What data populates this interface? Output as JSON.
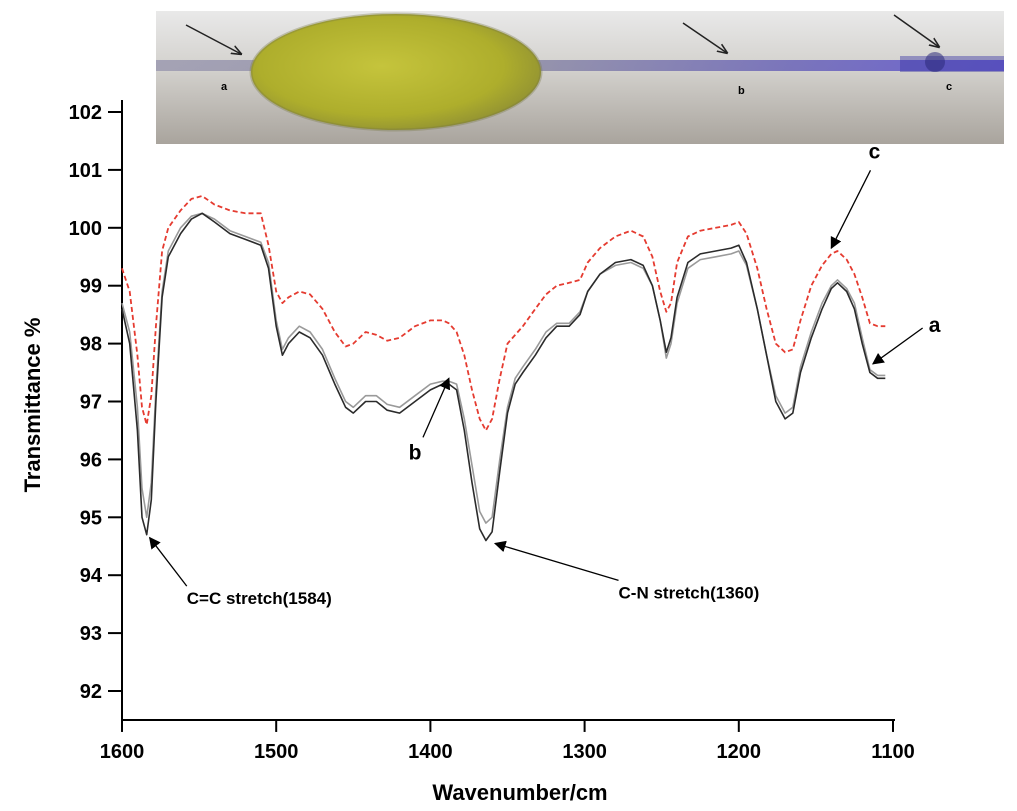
{
  "chart_data": {
    "type": "line",
    "xlabel": "Wavenumber/cm",
    "ylabel": "Transmittance %",
    "xlim": [
      1600,
      1100
    ],
    "ylim": [
      91.5,
      102.4
    ],
    "x_ticks": [
      1600,
      1500,
      1400,
      1300,
      1200,
      1100
    ],
    "y_ticks": [
      92,
      93,
      94,
      95,
      96,
      97,
      98,
      99,
      100,
      101,
      102
    ],
    "grid": false,
    "inset_photo_labels": [
      "a",
      "b",
      "c"
    ],
    "series": [
      {
        "name": "a",
        "color": "#2b2b2b",
        "style": "solid",
        "points": [
          [
            1600,
            98.6
          ],
          [
            1595,
            98.0
          ],
          [
            1590,
            96.5
          ],
          [
            1587,
            95.0
          ],
          [
            1584,
            94.7
          ],
          [
            1581,
            95.3
          ],
          [
            1578,
            97.0
          ],
          [
            1574,
            98.8
          ],
          [
            1570,
            99.5
          ],
          [
            1562,
            99.9
          ],
          [
            1555,
            100.15
          ],
          [
            1548,
            100.25
          ],
          [
            1540,
            100.1
          ],
          [
            1530,
            99.9
          ],
          [
            1520,
            99.8
          ],
          [
            1510,
            99.7
          ],
          [
            1505,
            99.3
          ],
          [
            1500,
            98.3
          ],
          [
            1496,
            97.8
          ],
          [
            1492,
            98.0
          ],
          [
            1485,
            98.2
          ],
          [
            1478,
            98.1
          ],
          [
            1470,
            97.8
          ],
          [
            1462,
            97.3
          ],
          [
            1455,
            96.9
          ],
          [
            1450,
            96.8
          ],
          [
            1442,
            97.0
          ],
          [
            1435,
            97.0
          ],
          [
            1428,
            96.85
          ],
          [
            1420,
            96.8
          ],
          [
            1410,
            97.0
          ],
          [
            1400,
            97.2
          ],
          [
            1392,
            97.3
          ],
          [
            1388,
            97.3
          ],
          [
            1383,
            97.2
          ],
          [
            1378,
            96.5
          ],
          [
            1373,
            95.6
          ],
          [
            1368,
            94.8
          ],
          [
            1364,
            94.6
          ],
          [
            1360,
            94.75
          ],
          [
            1355,
            95.8
          ],
          [
            1350,
            96.8
          ],
          [
            1345,
            97.3
          ],
          [
            1340,
            97.5
          ],
          [
            1332,
            97.8
          ],
          [
            1325,
            98.1
          ],
          [
            1318,
            98.3
          ],
          [
            1310,
            98.3
          ],
          [
            1303,
            98.5
          ],
          [
            1298,
            98.9
          ],
          [
            1290,
            99.2
          ],
          [
            1280,
            99.4
          ],
          [
            1270,
            99.45
          ],
          [
            1262,
            99.35
          ],
          [
            1256,
            99.0
          ],
          [
            1251,
            98.4
          ],
          [
            1247,
            97.85
          ],
          [
            1244,
            98.1
          ],
          [
            1240,
            98.8
          ],
          [
            1233,
            99.4
          ],
          [
            1225,
            99.55
          ],
          [
            1215,
            99.6
          ],
          [
            1205,
            99.65
          ],
          [
            1200,
            99.7
          ],
          [
            1195,
            99.4
          ],
          [
            1188,
            98.6
          ],
          [
            1182,
            97.8
          ],
          [
            1176,
            97.0
          ],
          [
            1170,
            96.7
          ],
          [
            1165,
            96.8
          ],
          [
            1160,
            97.5
          ],
          [
            1153,
            98.1
          ],
          [
            1146,
            98.6
          ],
          [
            1140,
            98.95
          ],
          [
            1136,
            99.05
          ],
          [
            1130,
            98.9
          ],
          [
            1125,
            98.6
          ],
          [
            1120,
            98.0
          ],
          [
            1115,
            97.5
          ],
          [
            1110,
            97.4
          ],
          [
            1105,
            97.4
          ]
        ]
      },
      {
        "name": "b",
        "color": "#9a9a9a",
        "style": "solid",
        "points": [
          [
            1600,
            98.7
          ],
          [
            1595,
            98.2
          ],
          [
            1590,
            96.9
          ],
          [
            1587,
            95.5
          ],
          [
            1584,
            95.0
          ],
          [
            1581,
            95.6
          ],
          [
            1578,
            97.2
          ],
          [
            1574,
            98.9
          ],
          [
            1570,
            99.6
          ],
          [
            1562,
            100.0
          ],
          [
            1555,
            100.2
          ],
          [
            1548,
            100.25
          ],
          [
            1540,
            100.15
          ],
          [
            1530,
            99.95
          ],
          [
            1520,
            99.85
          ],
          [
            1510,
            99.75
          ],
          [
            1505,
            99.4
          ],
          [
            1500,
            98.4
          ],
          [
            1496,
            97.9
          ],
          [
            1492,
            98.1
          ],
          [
            1485,
            98.3
          ],
          [
            1478,
            98.2
          ],
          [
            1470,
            97.9
          ],
          [
            1462,
            97.4
          ],
          [
            1455,
            97.0
          ],
          [
            1450,
            96.9
          ],
          [
            1442,
            97.1
          ],
          [
            1435,
            97.1
          ],
          [
            1428,
            96.95
          ],
          [
            1420,
            96.9
          ],
          [
            1410,
            97.1
          ],
          [
            1400,
            97.3
          ],
          [
            1392,
            97.35
          ],
          [
            1388,
            97.35
          ],
          [
            1383,
            97.3
          ],
          [
            1378,
            96.7
          ],
          [
            1373,
            95.9
          ],
          [
            1368,
            95.1
          ],
          [
            1364,
            94.9
          ],
          [
            1360,
            95.0
          ],
          [
            1355,
            96.0
          ],
          [
            1350,
            96.9
          ],
          [
            1345,
            97.4
          ],
          [
            1340,
            97.6
          ],
          [
            1332,
            97.9
          ],
          [
            1325,
            98.2
          ],
          [
            1318,
            98.35
          ],
          [
            1310,
            98.35
          ],
          [
            1303,
            98.55
          ],
          [
            1298,
            98.9
          ],
          [
            1290,
            99.2
          ],
          [
            1280,
            99.35
          ],
          [
            1270,
            99.4
          ],
          [
            1262,
            99.3
          ],
          [
            1256,
            99.0
          ],
          [
            1251,
            98.4
          ],
          [
            1247,
            97.75
          ],
          [
            1244,
            98.0
          ],
          [
            1240,
            98.7
          ],
          [
            1233,
            99.3
          ],
          [
            1225,
            99.45
          ],
          [
            1215,
            99.5
          ],
          [
            1205,
            99.55
          ],
          [
            1200,
            99.6
          ],
          [
            1195,
            99.35
          ],
          [
            1188,
            98.6
          ],
          [
            1182,
            97.8
          ],
          [
            1176,
            97.1
          ],
          [
            1170,
            96.8
          ],
          [
            1165,
            96.9
          ],
          [
            1160,
            97.6
          ],
          [
            1153,
            98.2
          ],
          [
            1146,
            98.7
          ],
          [
            1140,
            99.0
          ],
          [
            1136,
            99.1
          ],
          [
            1130,
            98.95
          ],
          [
            1125,
            98.7
          ],
          [
            1120,
            98.1
          ],
          [
            1115,
            97.55
          ],
          [
            1110,
            97.45
          ],
          [
            1105,
            97.45
          ]
        ]
      },
      {
        "name": "c",
        "color": "#e53b30",
        "style": "dashed",
        "points": [
          [
            1600,
            99.3
          ],
          [
            1595,
            98.9
          ],
          [
            1590,
            97.8
          ],
          [
            1587,
            96.9
          ],
          [
            1584,
            96.6
          ],
          [
            1581,
            97.1
          ],
          [
            1578,
            98.3
          ],
          [
            1574,
            99.6
          ],
          [
            1570,
            100.0
          ],
          [
            1562,
            100.3
          ],
          [
            1555,
            100.5
          ],
          [
            1548,
            100.55
          ],
          [
            1540,
            100.4
          ],
          [
            1530,
            100.3
          ],
          [
            1520,
            100.25
          ],
          [
            1510,
            100.25
          ],
          [
            1505,
            99.7
          ],
          [
            1500,
            98.9
          ],
          [
            1496,
            98.7
          ],
          [
            1492,
            98.8
          ],
          [
            1485,
            98.9
          ],
          [
            1478,
            98.85
          ],
          [
            1470,
            98.6
          ],
          [
            1462,
            98.2
          ],
          [
            1455,
            97.95
          ],
          [
            1450,
            98.0
          ],
          [
            1442,
            98.2
          ],
          [
            1435,
            98.15
          ],
          [
            1428,
            98.05
          ],
          [
            1420,
            98.1
          ],
          [
            1410,
            98.3
          ],
          [
            1400,
            98.4
          ],
          [
            1392,
            98.4
          ],
          [
            1388,
            98.35
          ],
          [
            1383,
            98.2
          ],
          [
            1378,
            97.8
          ],
          [
            1373,
            97.2
          ],
          [
            1368,
            96.7
          ],
          [
            1364,
            96.5
          ],
          [
            1360,
            96.7
          ],
          [
            1355,
            97.4
          ],
          [
            1350,
            98.0
          ],
          [
            1345,
            98.15
          ],
          [
            1340,
            98.3
          ],
          [
            1332,
            98.6
          ],
          [
            1325,
            98.85
          ],
          [
            1318,
            99.0
          ],
          [
            1310,
            99.05
          ],
          [
            1303,
            99.1
          ],
          [
            1298,
            99.4
          ],
          [
            1290,
            99.65
          ],
          [
            1280,
            99.85
          ],
          [
            1270,
            99.95
          ],
          [
            1262,
            99.85
          ],
          [
            1256,
            99.5
          ],
          [
            1251,
            98.9
          ],
          [
            1247,
            98.55
          ],
          [
            1244,
            98.7
          ],
          [
            1240,
            99.4
          ],
          [
            1233,
            99.85
          ],
          [
            1225,
            99.95
          ],
          [
            1215,
            100.0
          ],
          [
            1205,
            100.05
          ],
          [
            1200,
            100.1
          ],
          [
            1195,
            99.9
          ],
          [
            1188,
            99.3
          ],
          [
            1182,
            98.6
          ],
          [
            1176,
            98.0
          ],
          [
            1170,
            97.85
          ],
          [
            1165,
            97.9
          ],
          [
            1160,
            98.4
          ],
          [
            1153,
            99.0
          ],
          [
            1146,
            99.35
          ],
          [
            1140,
            99.55
          ],
          [
            1136,
            99.6
          ],
          [
            1130,
            99.45
          ],
          [
            1125,
            99.2
          ],
          [
            1120,
            98.8
          ],
          [
            1115,
            98.35
          ],
          [
            1110,
            98.3
          ],
          [
            1105,
            98.3
          ]
        ]
      }
    ],
    "annotations": [
      {
        "text": "C=C stretch(1584)",
        "target": [
          1584,
          94.7
        ],
        "label_pos": [
          1558,
          93.5
        ]
      },
      {
        "text": "C-N stretch(1360)",
        "target": [
          1360,
          94.6
        ],
        "label_pos": [
          1278,
          93.6
        ]
      }
    ],
    "series_labels": [
      {
        "text": "a",
        "target": [
          1113,
          97.65
        ],
        "label_pos": [
          1073,
          98.2
        ]
      },
      {
        "text": "b",
        "target": [
          1388,
          97.4
        ],
        "label_pos": [
          1410,
          96.0
        ]
      },
      {
        "text": "c",
        "target": [
          1140,
          99.65
        ],
        "label_pos": [
          1112,
          101.2
        ]
      }
    ]
  }
}
